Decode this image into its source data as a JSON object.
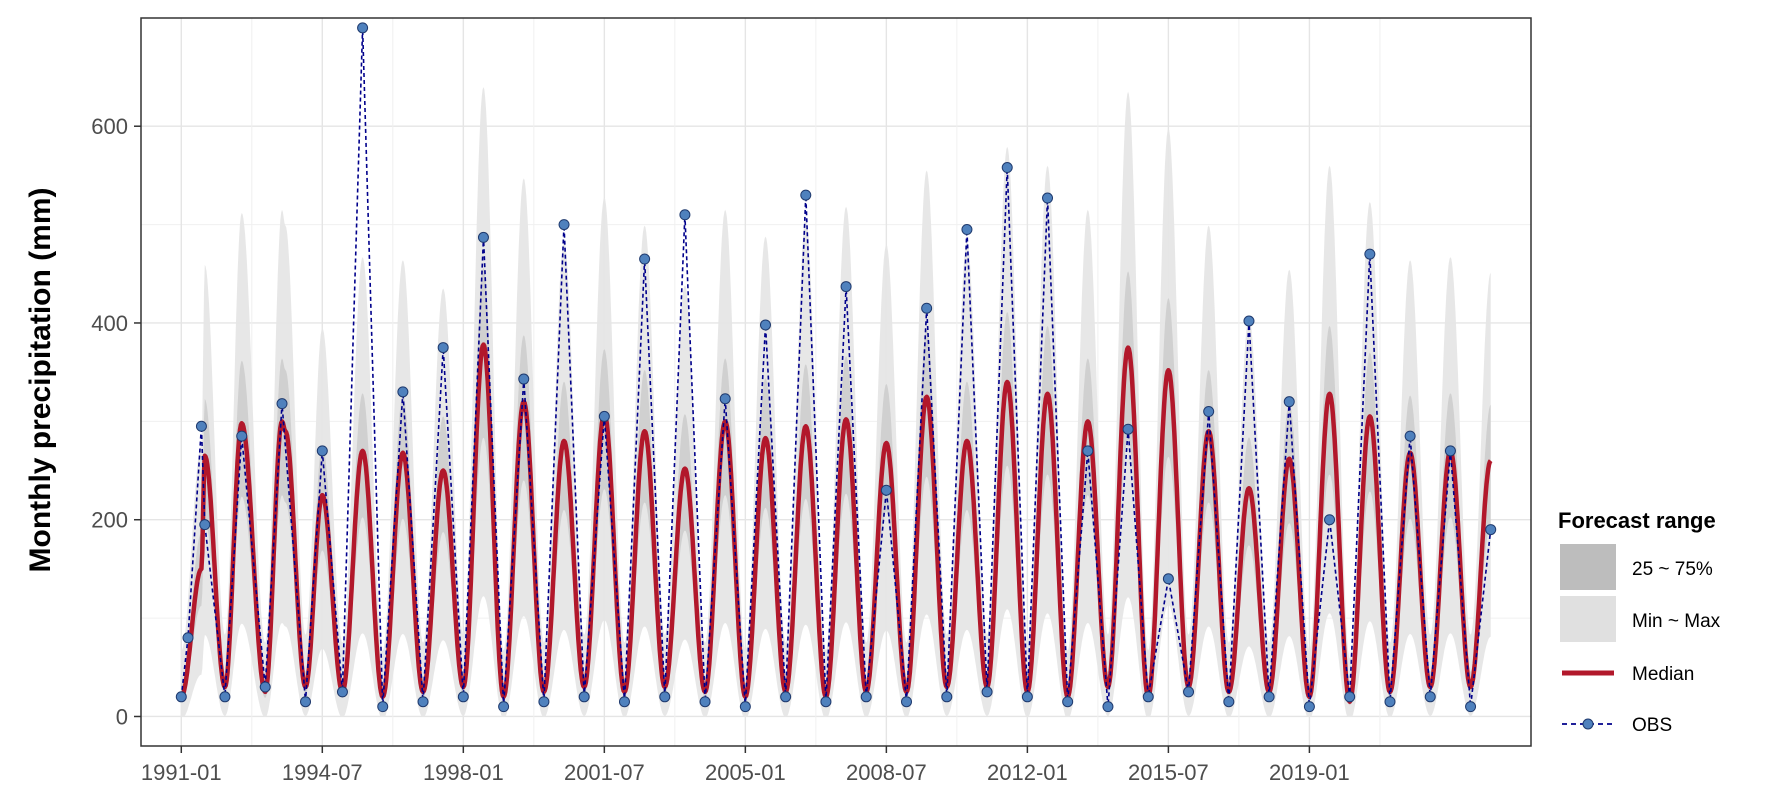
{
  "chart_data": {
    "type": "line",
    "title": "",
    "xlabel": "",
    "ylabel": "Monthly precipitation (mm)",
    "ylim": [
      -30,
      710
    ],
    "yticks": [
      0,
      200,
      400,
      600
    ],
    "x_range": [
      "1990-01",
      "2024-07"
    ],
    "x_ticks": [
      "1991-01",
      "1994-07",
      "1998-01",
      "2001-07",
      "2005-01",
      "2008-07",
      "2012-01",
      "2015-07",
      "2019-01"
    ],
    "grid": true,
    "legend_position": "right",
    "legend": {
      "title": "Forecast range",
      "entries": [
        "25 ~ 75%",
        "Min ~ Max",
        "Median",
        "OBS"
      ]
    },
    "colors": {
      "median": "#b2182b",
      "obs_line": "#00008b",
      "obs_point": "#4f81bd",
      "band_iqr": "#bdbdbd",
      "band_minmax": "#e6e6e6"
    },
    "series": [
      {
        "name": "Median",
        "x": [
          "1991-01",
          "1991-07",
          "1991-08",
          "1992-02",
          "1992-07",
          "1993-02",
          "1993-07",
          "1993-08",
          "1994-02",
          "1994-07",
          "1995-01",
          "1995-07",
          "1996-01",
          "1996-07",
          "1997-01",
          "1997-07",
          "1998-01",
          "1998-07",
          "1999-01",
          "1999-07",
          "2000-01",
          "2000-07",
          "2001-01",
          "2001-07",
          "2002-01",
          "2002-07",
          "2003-01",
          "2003-07",
          "2004-01",
          "2004-07",
          "2005-01",
          "2005-07",
          "2006-01",
          "2006-07",
          "2007-01",
          "2007-07",
          "2008-01",
          "2008-07",
          "2009-01",
          "2009-07",
          "2010-01",
          "2010-07",
          "2011-01",
          "2011-07",
          "2012-01",
          "2012-07",
          "2013-01",
          "2013-07",
          "2014-01",
          "2014-07",
          "2015-01",
          "2015-07",
          "2016-01",
          "2016-07",
          "2017-01",
          "2017-07",
          "2018-01",
          "2018-07",
          "2019-01",
          "2019-07",
          "2020-01",
          "2020-07",
          "2021-01",
          "2021-07",
          "2022-01",
          "2022-07",
          "2023-01",
          "2023-07"
        ],
        "values": [
          20,
          150,
          265,
          30,
          298,
          25,
          300,
          290,
          30,
          225,
          25,
          270,
          20,
          268,
          25,
          250,
          30,
          378,
          20,
          320,
          25,
          280,
          30,
          308,
          25,
          290,
          30,
          252,
          25,
          300,
          20,
          283,
          25,
          295,
          20,
          302,
          25,
          278,
          25,
          325,
          30,
          280,
          30,
          340,
          25,
          328,
          20,
          300,
          30,
          375,
          20,
          352,
          30,
          290,
          25,
          232,
          25,
          262,
          20,
          328,
          15,
          305,
          25,
          268,
          30,
          270,
          30,
          260
        ]
      },
      {
        "name": "OBS",
        "x": [
          "1991-01",
          "1991-03",
          "1991-07",
          "1991-08",
          "1992-02",
          "1992-07",
          "1993-02",
          "1993-07",
          "1994-02",
          "1994-07",
          "1995-01",
          "1995-07",
          "1996-01",
          "1996-07",
          "1997-01",
          "1997-07",
          "1998-01",
          "1998-07",
          "1999-01",
          "1999-07",
          "2000-01",
          "2000-07",
          "2001-01",
          "2001-07",
          "2002-01",
          "2002-07",
          "2003-01",
          "2003-07",
          "2004-01",
          "2004-07",
          "2005-01",
          "2005-07",
          "2006-01",
          "2006-07",
          "2007-01",
          "2007-07",
          "2008-01",
          "2008-07",
          "2009-01",
          "2009-07",
          "2010-01",
          "2010-07",
          "2011-01",
          "2011-07",
          "2012-01",
          "2012-07",
          "2013-01",
          "2013-07",
          "2014-01",
          "2014-07",
          "2015-01",
          "2015-07",
          "2016-01",
          "2016-07",
          "2017-01",
          "2017-07",
          "2018-01",
          "2018-07",
          "2019-01",
          "2019-07",
          "2020-01",
          "2020-07",
          "2021-01",
          "2021-07",
          "2022-01",
          "2022-07",
          "2023-01",
          "2023-07"
        ],
        "values": [
          20,
          80,
          295,
          195,
          20,
          285,
          30,
          318,
          15,
          270,
          25,
          700,
          10,
          330,
          15,
          375,
          20,
          487,
          10,
          343,
          15,
          500,
          20,
          305,
          15,
          465,
          20,
          510,
          15,
          323,
          10,
          398,
          20,
          530,
          15,
          437,
          20,
          230,
          15,
          415,
          20,
          495,
          25,
          558,
          20,
          527,
          15,
          270,
          10,
          292,
          20,
          140,
          25,
          310,
          15,
          402,
          20,
          320,
          10,
          200,
          20,
          470,
          15,
          285,
          20,
          270,
          10,
          190
        ]
      }
    ]
  }
}
